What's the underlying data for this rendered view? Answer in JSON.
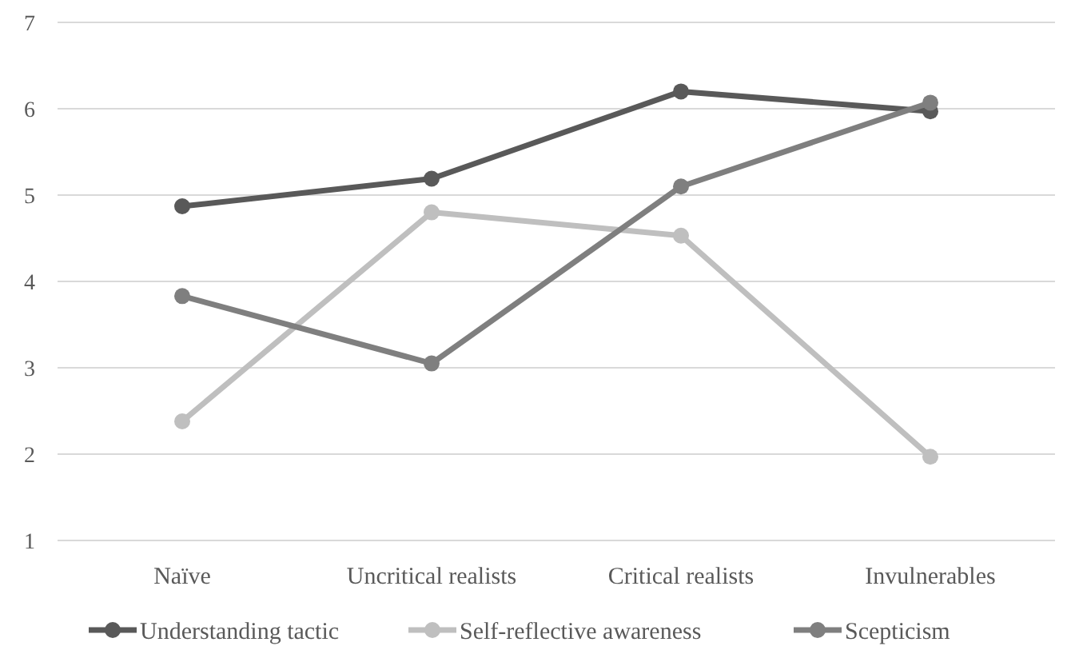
{
  "chart_data": {
    "type": "line",
    "categories": [
      "Naïve",
      "Uncritical realists",
      "Critical realists",
      "Invulnerables"
    ],
    "series": [
      {
        "name": "Understanding tactic",
        "color": "#595959",
        "values": [
          4.87,
          5.19,
          6.2,
          5.97
        ]
      },
      {
        "name": "Self-reflective awareness",
        "color": "#bfbfbf",
        "values": [
          2.38,
          4.8,
          4.53,
          1.97
        ]
      },
      {
        "name": "Scepticism",
        "color": "#7f7f7f",
        "values": [
          3.83,
          3.05,
          5.1,
          6.07
        ]
      }
    ],
    "ylim": [
      1,
      7
    ],
    "yticks": [
      1,
      2,
      3,
      4,
      5,
      6,
      7
    ],
    "grid": "y",
    "legend": "bottom",
    "marker": "circle",
    "line_style": "solid"
  }
}
